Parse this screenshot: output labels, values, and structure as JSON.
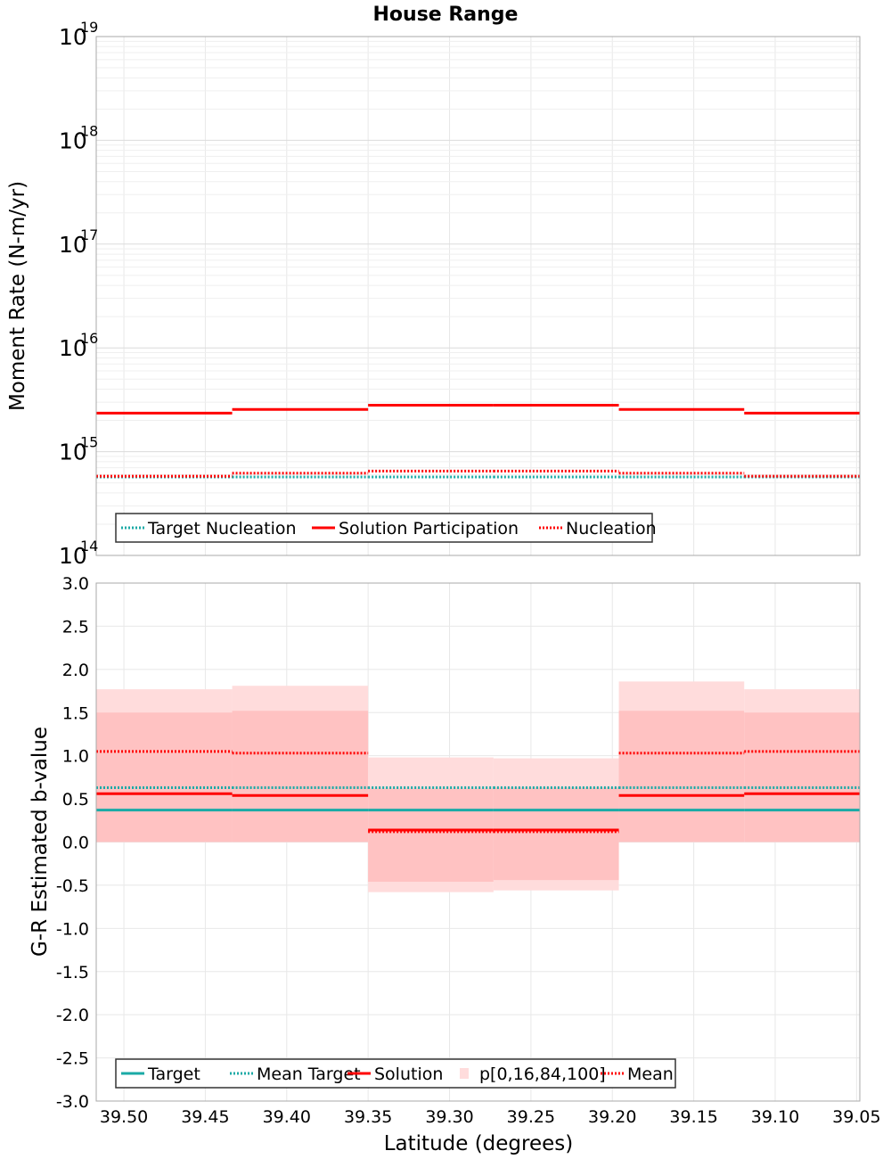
{
  "title": "House Range",
  "colors": {
    "target": "#1aaaa6",
    "solution": "#ff0000",
    "band_outer": "#ffdcdc",
    "band_inner": "#ffc2c2",
    "grid": "#e8e8e8",
    "frame": "#a8a8a8"
  },
  "chart_data": [
    {
      "type": "line",
      "title": "House Range",
      "xlabel": "",
      "ylabel": "Moment Rate (N-m/yr)",
      "y_scale": "log",
      "ylim": [
        100000000000000.0,
        1e+19
      ],
      "y_ticks": [
        {
          "base": "10",
          "exp": "14",
          "value": 100000000000000.0
        },
        {
          "base": "10",
          "exp": "15",
          "value": 1000000000000000.0
        },
        {
          "base": "10",
          "exp": "16",
          "value": 1e+16
        },
        {
          "base": "10",
          "exp": "17",
          "value": 1e+17
        },
        {
          "base": "10",
          "exp": "18",
          "value": 1e+18
        },
        {
          "base": "10",
          "exp": "19",
          "value": 1e+19
        }
      ],
      "xlim": [
        39.517,
        39.048
      ],
      "x_bin_edges": [
        39.517,
        39.4335,
        39.35,
        39.273,
        39.196,
        39.119,
        39.048
      ],
      "series": [
        {
          "name": "Target Nucleation",
          "style": "dotted",
          "color": "#1aaaa6",
          "values": [
            570000000000000.0,
            570000000000000.0,
            570000000000000.0,
            570000000000000.0,
            570000000000000.0,
            570000000000000.0
          ]
        },
        {
          "name": "Solution Participation",
          "style": "solid",
          "color": "#ff0000",
          "values": [
            2350000000000000.0,
            2550000000000000.0,
            2800000000000000.0,
            2800000000000000.0,
            2550000000000000.0,
            2350000000000000.0
          ]
        },
        {
          "name": "Nucleation",
          "style": "dotted",
          "color": "#ff0000",
          "values": [
            580000000000000.0,
            620000000000000.0,
            650000000000000.0,
            650000000000000.0,
            620000000000000.0,
            580000000000000.0
          ]
        }
      ],
      "legend": {
        "position": "bottom-left",
        "items": [
          {
            "label": "Target Nucleation",
            "style": "dotted",
            "color": "#1aaaa6"
          },
          {
            "label": "Solution Participation",
            "style": "solid",
            "color": "#ff0000"
          },
          {
            "label": "Nucleation",
            "style": "dotted",
            "color": "#ff0000"
          }
        ]
      },
      "grid": true
    },
    {
      "type": "line",
      "xlabel": "Latitude (degrees)",
      "ylabel": "G-R Estimated b-value",
      "ylim": [
        -3.0,
        3.0
      ],
      "y_ticks": [
        "-3.0",
        "-2.5",
        "-2.0",
        "-1.5",
        "-1.0",
        "-0.5",
        "0.0",
        "0.5",
        "1.0",
        "1.5",
        "2.0",
        "2.5",
        "3.0"
      ],
      "xlim": [
        39.517,
        39.048
      ],
      "x_ticks": [
        "39.50",
        "39.45",
        "39.40",
        "39.35",
        "39.30",
        "39.25",
        "39.20",
        "39.15",
        "39.10",
        "39.05"
      ],
      "x_bin_edges": [
        39.517,
        39.4335,
        39.35,
        39.273,
        39.196,
        39.119,
        39.048
      ],
      "series": [
        {
          "name": "Target",
          "style": "solid",
          "color": "#1aaaa6",
          "values": [
            0.37,
            0.37,
            0.37,
            0.37,
            0.37,
            0.37
          ]
        },
        {
          "name": "Mean Target",
          "style": "dotted",
          "color": "#1aaaa6",
          "values": [
            0.63,
            0.63,
            0.63,
            0.63,
            0.63,
            0.63
          ]
        },
        {
          "name": "Solution",
          "style": "solid",
          "color": "#ff0000",
          "values": [
            0.56,
            0.54,
            0.14,
            0.14,
            0.54,
            0.56
          ]
        },
        {
          "name": "Mean",
          "style": "dotted",
          "color": "#ff0000",
          "values": [
            1.05,
            1.03,
            0.12,
            0.12,
            1.03,
            1.05
          ]
        }
      ],
      "band": {
        "name": "p[0,16,84,100]",
        "p0": [
          0.0,
          0.0,
          -0.58,
          -0.56,
          0.0,
          0.0
        ],
        "p16": [
          0.0,
          0.0,
          -0.46,
          -0.44,
          0.0,
          0.0
        ],
        "p84": [
          1.5,
          1.52,
          0.62,
          0.63,
          1.52,
          1.5
        ],
        "p100": [
          1.77,
          1.81,
          0.98,
          0.97,
          1.86,
          1.77
        ]
      },
      "legend": {
        "position": "bottom-left",
        "items": [
          {
            "label": "Target",
            "style": "solid",
            "color": "#1aaaa6"
          },
          {
            "label": "Mean Target",
            "style": "dotted",
            "color": "#1aaaa6"
          },
          {
            "label": "Solution",
            "style": "solid",
            "color": "#ff0000"
          },
          {
            "label": "p[0,16,84,100]",
            "style": "band",
            "color": "#ffdcdc"
          },
          {
            "label": "Mean",
            "style": "dotted",
            "color": "#ff0000"
          }
        ]
      },
      "grid": true
    }
  ]
}
